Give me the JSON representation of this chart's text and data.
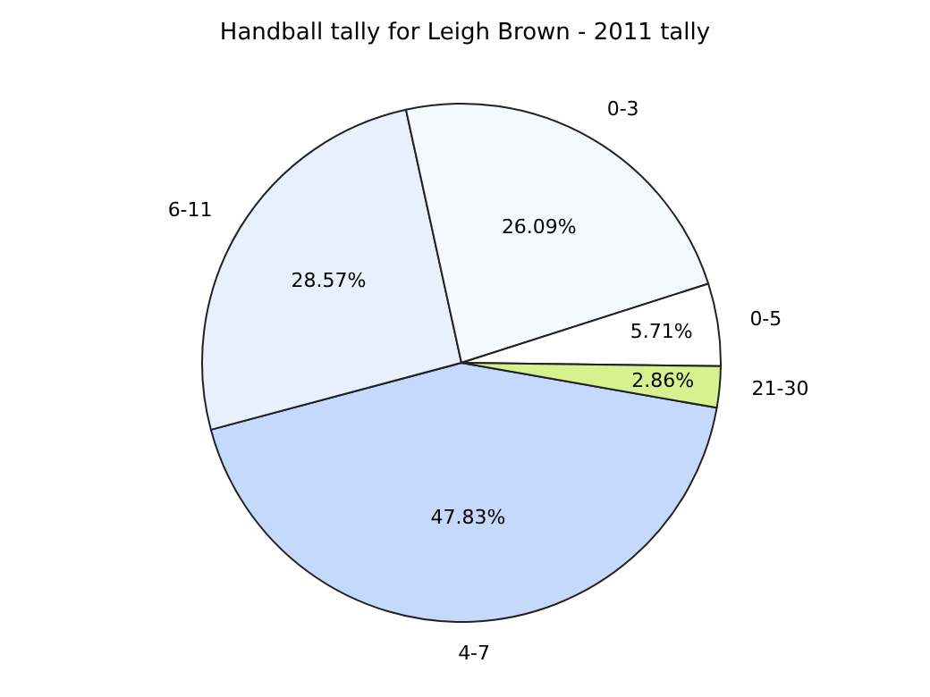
{
  "chart_data": {
    "type": "pie",
    "title": "Handball tally for Leigh Brown - 2011 tally",
    "categories": [
      "4-7",
      "6-11",
      "0-3",
      "0-5",
      "21-30"
    ],
    "values": [
      47.83,
      28.57,
      26.09,
      5.71,
      2.86
    ],
    "value_labels": [
      "47.83%",
      "28.57%",
      "26.09%",
      "5.71%",
      "2.86%"
    ],
    "colors": [
      "#c5d9fd",
      "#e8f0fe",
      "#f4f8ff",
      "#ffffff",
      "#d6f28f"
    ],
    "legend": false
  }
}
